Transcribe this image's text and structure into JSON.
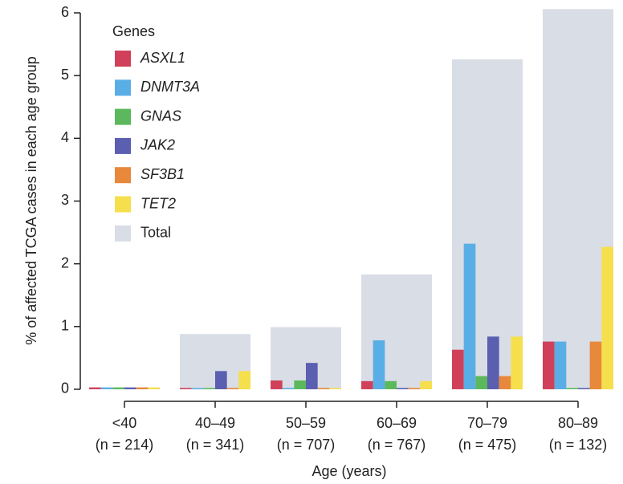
{
  "chart_data": {
    "type": "bar",
    "categories": [
      "<40",
      "40–49",
      "50–59",
      "60–69",
      "70–79",
      "80–89"
    ],
    "sample_sizes": [
      "(n = 214)",
      "(n = 341)",
      "(n = 707)",
      "(n = 767)",
      "(n = 475)",
      "(n = 132)"
    ],
    "xlabel": "Age (years)",
    "ylabel": "% of affected TCGA cases in each age group",
    "legend_title": "Genes",
    "series": [
      {
        "name": "ASXL1",
        "color": "#d0405a",
        "values": [
          0.03,
          0.02,
          0.14,
          0.13,
          0.63,
          0.76
        ]
      },
      {
        "name": "DNMT3A",
        "color": "#5aaee6",
        "values": [
          0.03,
          0.02,
          0.02,
          0.78,
          2.32,
          0.76
        ]
      },
      {
        "name": "GNAS",
        "color": "#5cb85c",
        "values": [
          0.03,
          0.02,
          0.14,
          0.13,
          0.21,
          0.02
        ]
      },
      {
        "name": "JAK2",
        "color": "#5a5fb0",
        "values": [
          0.03,
          0.29,
          0.42,
          0.02,
          0.84,
          0.02
        ]
      },
      {
        "name": "SF3B1",
        "color": "#e8883a",
        "values": [
          0.03,
          0.02,
          0.02,
          0.02,
          0.21,
          0.76
        ]
      },
      {
        "name": "TET2",
        "color": "#f5df4d",
        "values": [
          0.03,
          0.29,
          0.02,
          0.13,
          0.84,
          2.27
        ]
      }
    ],
    "totals": {
      "name": "Total",
      "color": "#d9dde6",
      "values": [
        0,
        0.88,
        0.99,
        1.83,
        5.26,
        6.06
      ]
    },
    "ylim": [
      -0.15,
      6.1
    ],
    "yticks": [
      0,
      1,
      2,
      3,
      4,
      5,
      6
    ]
  }
}
